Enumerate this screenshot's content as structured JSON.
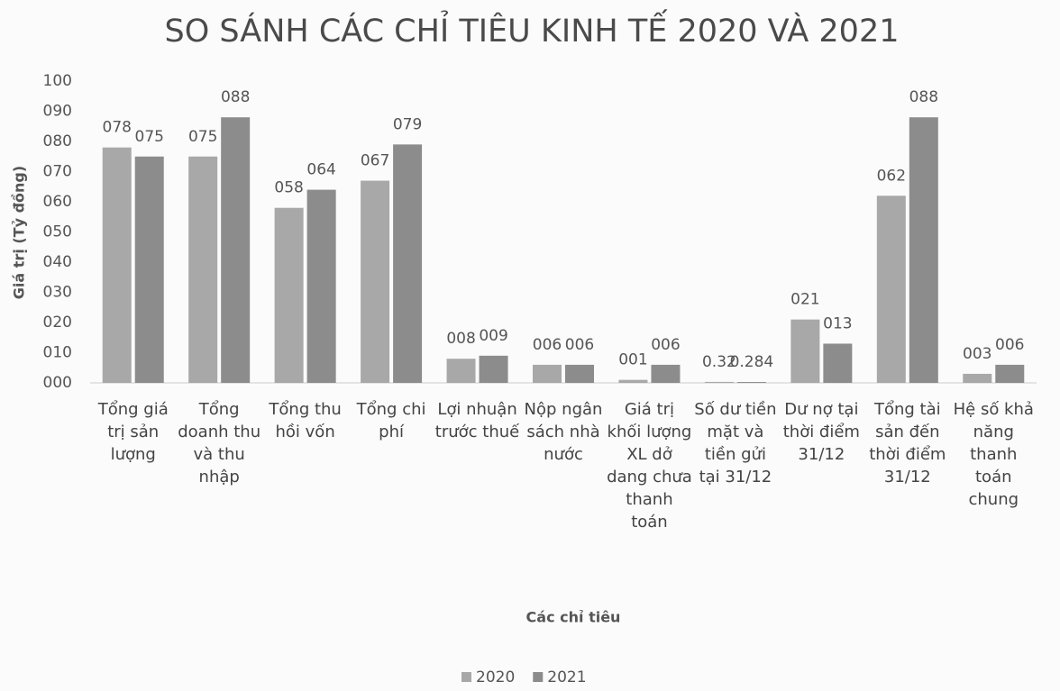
{
  "chart_data": {
    "type": "bar",
    "title": "SO SÁNH CÁC CHỈ TIÊU KINH TẾ 2020 VÀ 2021",
    "x_label": "Các chỉ tiêu",
    "y_label": "Giá trị (Tỷ đồng)",
    "categories": [
      "Tổng giá trị sản lượng",
      "Tổng doanh thu và thu nhập",
      "Tổng thu hồi vốn",
      "Tổng chi phí",
      "Lợi nhuận trước thuế",
      "Nộp ngân sách nhà nước",
      "Giá trị khối lượng XL dở dang chưa thanh toán",
      "Số dư tiền mặt và tiền gửi tại 31/12",
      "Dư nợ tại thời điểm 31/12",
      "Tổng tài sản đến thời điểm 31/12",
      "Hệ số khả năng thanh toán chung"
    ],
    "series": [
      {
        "name": "2020",
        "color": "#a8a8a8",
        "values": [
          78,
          75,
          58,
          67,
          8,
          6,
          1,
          0.32,
          21,
          62,
          3
        ],
        "value_labels": [
          "078",
          "075",
          "058",
          "067",
          "008",
          "006",
          "001",
          "0.32",
          "021",
          "062",
          "003"
        ]
      },
      {
        "name": "2021",
        "color": "#8c8c8c",
        "values": [
          75,
          88,
          64,
          79,
          9,
          6,
          6,
          0.284,
          13,
          88,
          6
        ],
        "value_labels": [
          "075",
          "088",
          "064",
          "079",
          "009",
          "006",
          "006",
          "0.284",
          "013",
          "088",
          "006"
        ]
      }
    ],
    "ylim": [
      0,
      100
    ],
    "yticks": [
      {
        "value": 0,
        "label": "000"
      },
      {
        "value": 10,
        "label": "010"
      },
      {
        "value": 20,
        "label": "020"
      },
      {
        "value": 30,
        "label": "030"
      },
      {
        "value": 40,
        "label": "040"
      },
      {
        "value": 50,
        "label": "050"
      },
      {
        "value": 60,
        "label": "060"
      },
      {
        "value": 70,
        "label": "070"
      },
      {
        "value": 80,
        "label": "080"
      },
      {
        "value": 90,
        "label": "090"
      },
      100
    ],
    "grid": false,
    "legend": "bottom"
  }
}
